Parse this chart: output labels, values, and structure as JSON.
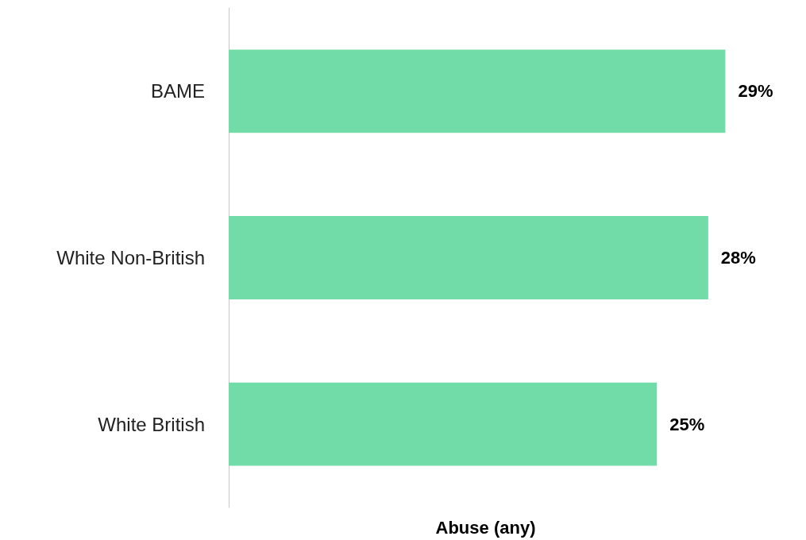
{
  "chart_data": {
    "type": "bar",
    "orientation": "horizontal",
    "xlabel": "Abuse (any)",
    "categories": [
      "BAME",
      "White Non-British",
      "White British"
    ],
    "values": [
      29,
      28,
      25
    ],
    "value_labels": [
      "29%",
      "28%",
      "25%"
    ],
    "color": "#72dca8",
    "tick_labels": "y"
  }
}
